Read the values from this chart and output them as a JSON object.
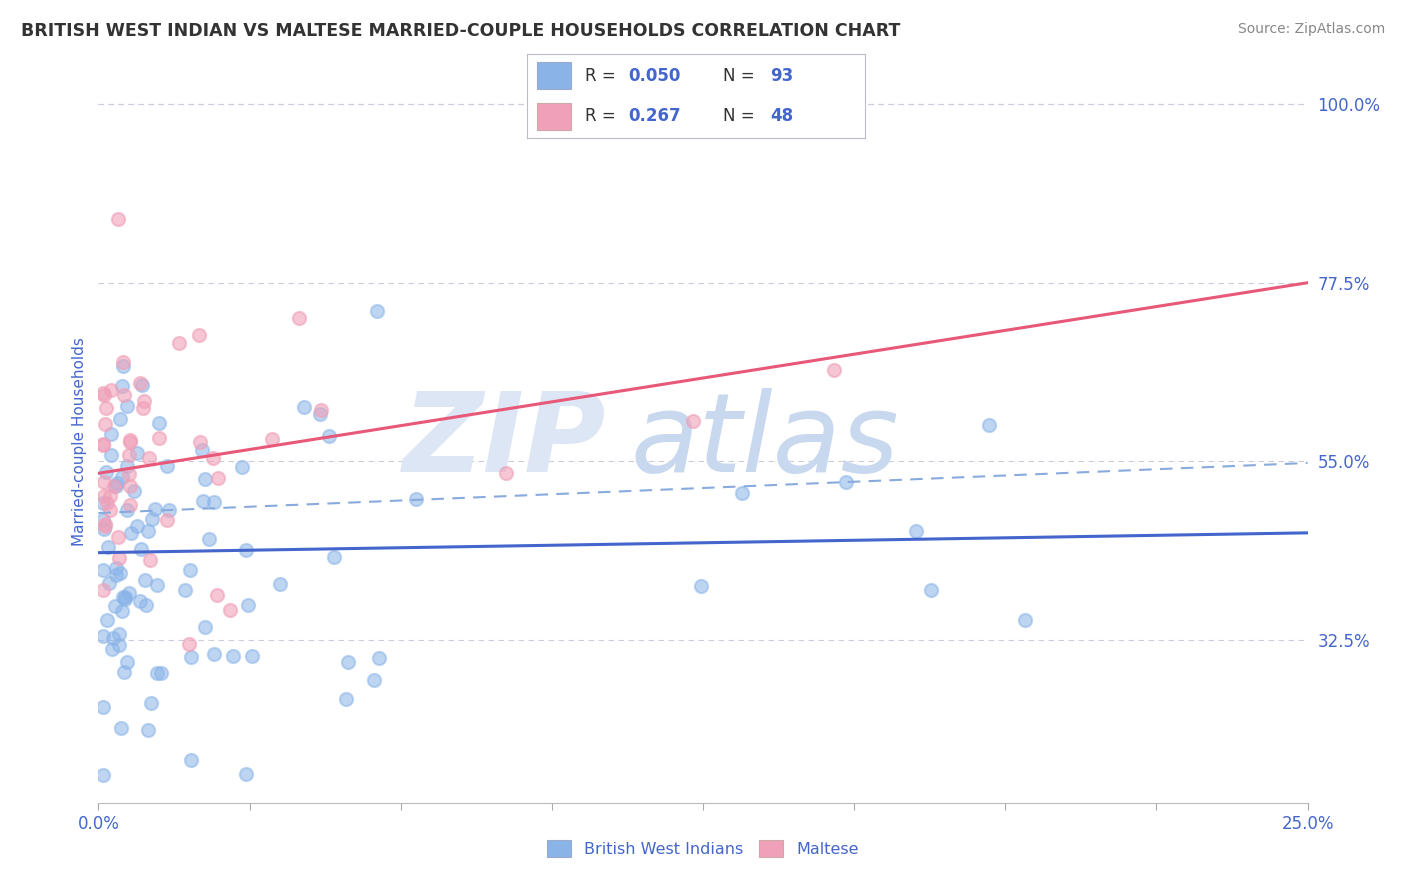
{
  "title": "BRITISH WEST INDIAN VS MALTESE MARRIED-COUPLE HOUSEHOLDS CORRELATION CHART",
  "source": "Source: ZipAtlas.com",
  "ylabel": "Married-couple Households",
  "xlim": [
    0.0,
    0.25
  ],
  "ylim": [
    0.12,
    1.03
  ],
  "yticks": [
    0.325,
    0.55,
    0.775,
    1.0
  ],
  "ytick_labels": [
    "32.5%",
    "55.0%",
    "77.5%",
    "100.0%"
  ],
  "xticks": [
    0.0,
    0.03125,
    0.0625,
    0.09375,
    0.125,
    0.15625,
    0.1875,
    0.21875,
    0.25
  ],
  "xtick_labels_show": [
    "0.0%",
    "",
    "",
    "",
    "",
    "",
    "",
    "",
    "25.0%"
  ],
  "legend_r1": "0.050",
  "legend_n1": "93",
  "legend_r2": "0.267",
  "legend_n2": "48",
  "label1": "British West Indians",
  "label2": "Maltese",
  "dot_color1": "#8ab4e8",
  "dot_color2": "#f0a0b8",
  "line_color1": "#4466cc",
  "line_color2": "#e85878",
  "dashed_color": "#88aadd",
  "axis_color": "#4466cc",
  "title_color": "#333333",
  "source_color": "#888888",
  "background_color": "#ffffff",
  "grid_color": "#ccccdd",
  "bwi_trend_x": [
    0.0,
    0.25
  ],
  "bwi_trend_y": [
    0.435,
    0.46
  ],
  "maltese_trend_x": [
    0.0,
    0.25
  ],
  "maltese_trend_y": [
    0.535,
    0.775
  ],
  "dashed_trend_x": [
    0.0,
    0.25
  ],
  "dashed_trend_y": [
    0.485,
    0.548
  ]
}
